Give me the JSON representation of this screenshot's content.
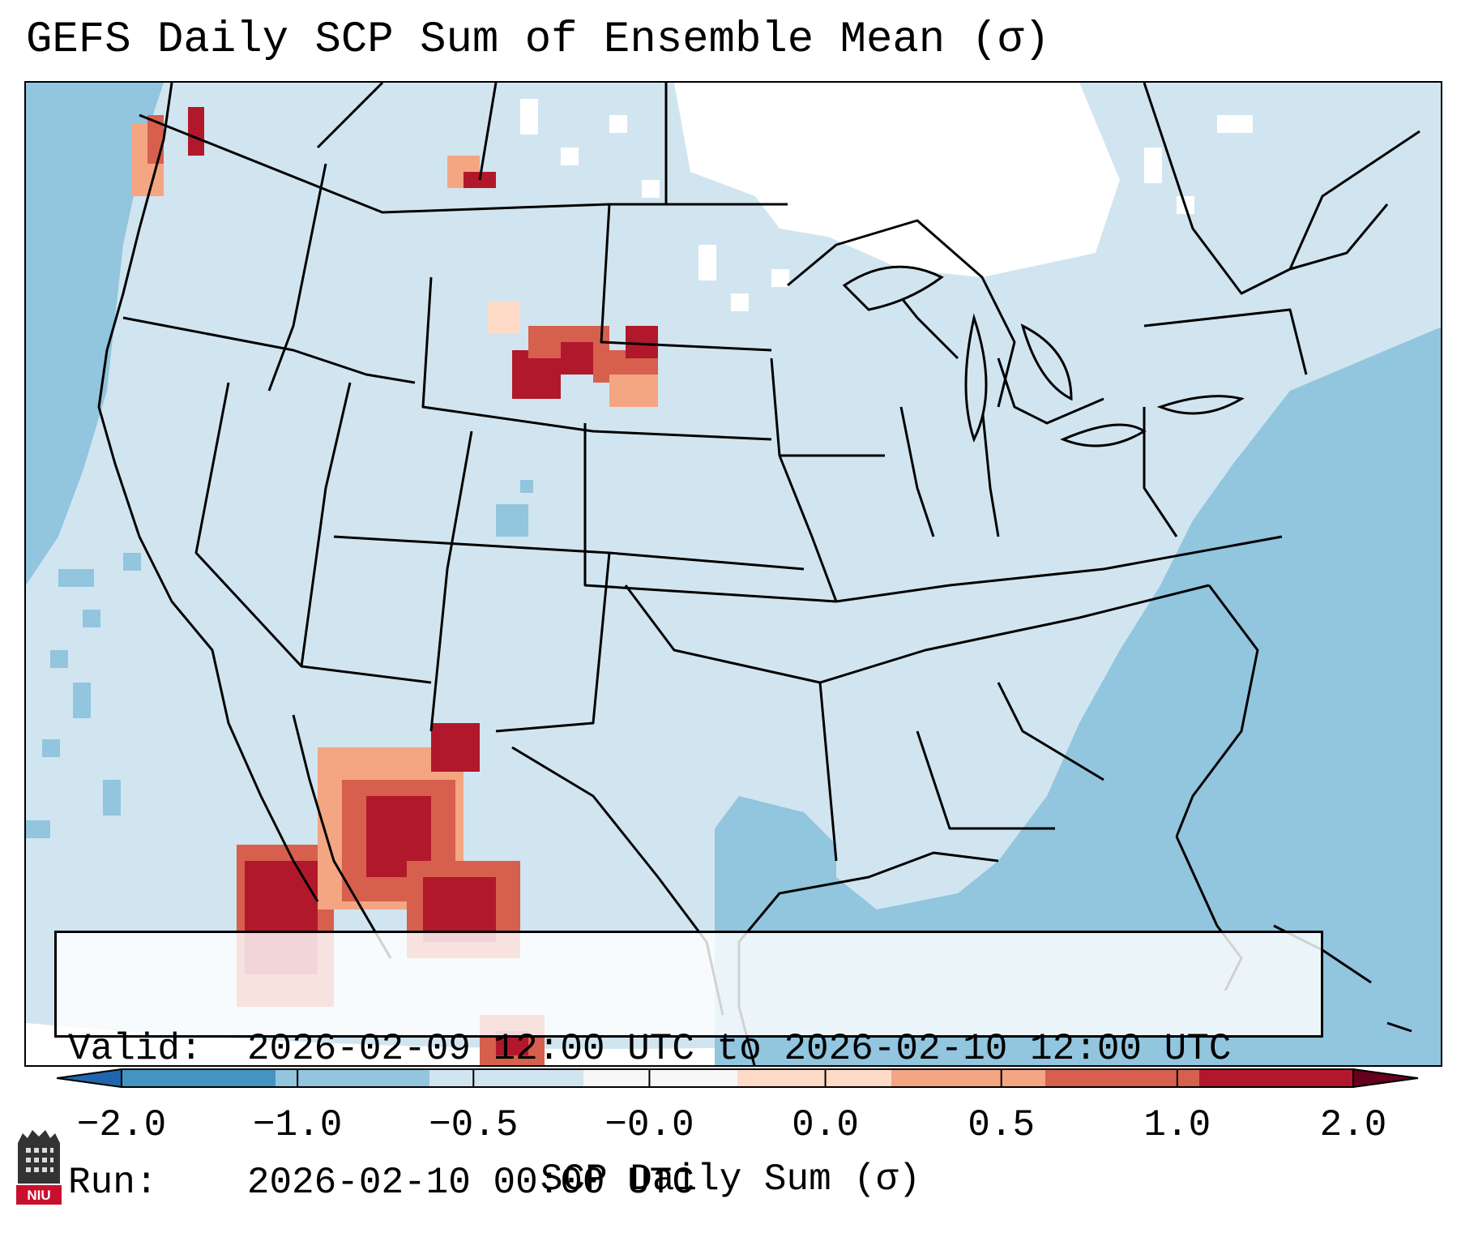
{
  "title": "GEFS Daily SCP Sum of Ensemble Mean (σ)",
  "info": {
    "valid_label": "Valid:",
    "valid_value": "2026-02-09 12:00 UTC to 2026-02-10 12:00 UTC",
    "run_label": "Run:",
    "run_value": "2026-02-10 00:00 UTC"
  },
  "colorbar": {
    "label": "SCP Daily Sum (σ)",
    "ticks": [
      "−2.0",
      "−1.0",
      "−0.5",
      "−0.0",
      "0.0",
      "0.5",
      "1.0",
      "2.0"
    ],
    "colors": [
      "#4393c3",
      "#92c5de",
      "#d1e5f0",
      "#f7f7f7",
      "#fddbc7",
      "#f4a582",
      "#d6604d",
      "#b2182b"
    ],
    "extend": "both"
  },
  "logo": {
    "text": "NIU",
    "icon": "niu-logo-icon"
  },
  "legend_colors": {
    "ocean_deep": "#92c5de",
    "ocean_light": "#d1e5f0",
    "neutral": "#f7f7f7",
    "high": "#b2182b"
  }
}
